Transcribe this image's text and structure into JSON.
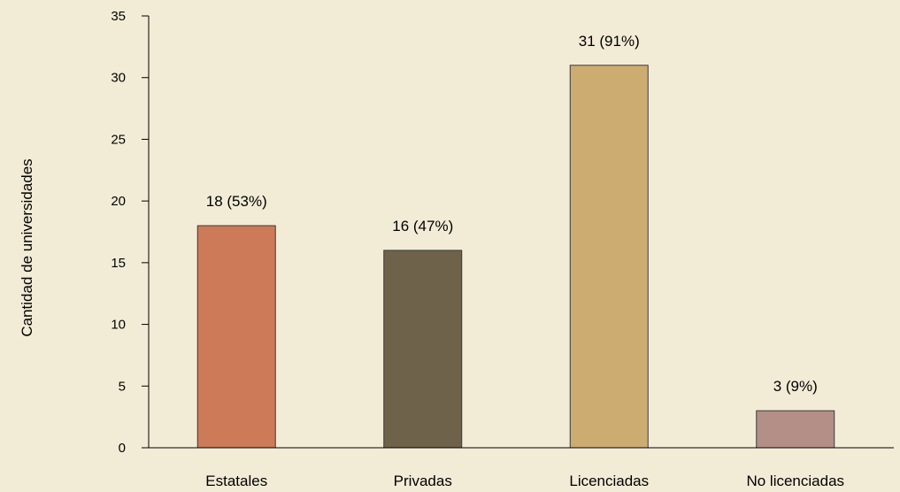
{
  "chart_data": {
    "type": "bar",
    "categories": [
      "Estatales",
      "Privadas",
      "Licenciadas",
      "No licenciadas"
    ],
    "values": [
      18,
      16,
      31,
      3
    ],
    "data_labels": [
      "18 (53%)",
      "16 (47%)",
      "31 (91%)",
      "3 (9%)"
    ],
    "colors": [
      "#cc7a58",
      "#6e624b",
      "#cdac72",
      "#b48f87"
    ],
    "title": "",
    "xlabel": "",
    "ylabel": "Cantidad de universidades",
    "ylim": [
      0,
      35
    ],
    "yticks": [
      0,
      5,
      10,
      15,
      20,
      25,
      30,
      35
    ],
    "grid": false,
    "legend": "none",
    "background": "#f2ecd7"
  }
}
